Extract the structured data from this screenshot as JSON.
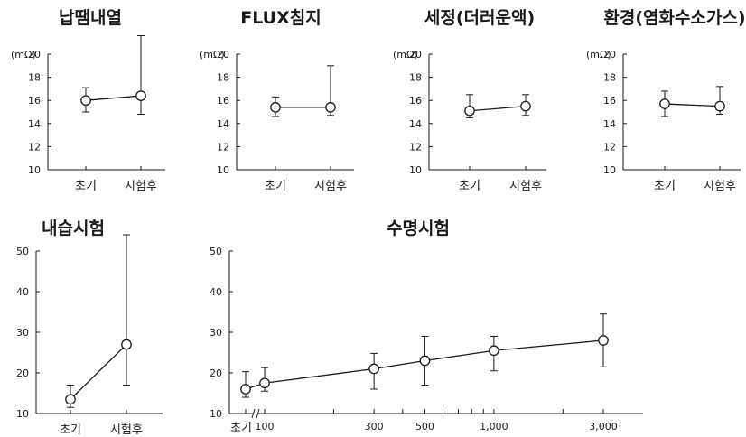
{
  "chart_data": [
    {
      "id": "c1",
      "type": "line",
      "title": "납땜내열",
      "ylabel": "(mΩ)",
      "ylim": [
        10,
        20
      ],
      "yticks": [
        10,
        12,
        14,
        16,
        18,
        20
      ],
      "categories": [
        "초기",
        "시험후"
      ],
      "points": [
        {
          "y": 16.0,
          "low": 15.0,
          "high": 17.1
        },
        {
          "y": 16.4,
          "low": 14.8,
          "high": 21.6
        }
      ],
      "grid": false
    },
    {
      "id": "c2",
      "type": "line",
      "title": "FLUX침지",
      "ylabel": "(mΩ)",
      "ylim": [
        10,
        20
      ],
      "yticks": [
        10,
        12,
        14,
        16,
        18,
        20
      ],
      "categories": [
        "초기",
        "시험후"
      ],
      "points": [
        {
          "y": 15.4,
          "low": 14.6,
          "high": 16.3
        },
        {
          "y": 15.4,
          "low": 14.7,
          "high": 19.0
        }
      ],
      "grid": false
    },
    {
      "id": "c3",
      "type": "line",
      "title": "세정(더러운액)",
      "ylabel": "(mΩ)",
      "ylim": [
        10,
        20
      ],
      "yticks": [
        10,
        12,
        14,
        16,
        18,
        20
      ],
      "categories": [
        "초기",
        "시험후"
      ],
      "points": [
        {
          "y": 15.1,
          "low": 14.5,
          "high": 16.5
        },
        {
          "y": 15.5,
          "low": 14.7,
          "high": 16.5
        }
      ],
      "grid": false
    },
    {
      "id": "c4",
      "type": "line",
      "title": "환경(염화수소가스)",
      "ylabel": "(mΩ)",
      "ylim": [
        10,
        20
      ],
      "yticks": [
        10,
        12,
        14,
        16,
        18,
        20
      ],
      "categories": [
        "초기",
        "시험후"
      ],
      "points": [
        {
          "y": 15.7,
          "low": 14.6,
          "high": 16.8
        },
        {
          "y": 15.5,
          "low": 14.8,
          "high": 17.2
        }
      ],
      "grid": false
    },
    {
      "id": "c5",
      "type": "line",
      "title": "내습시험",
      "ylabel": "",
      "ylim": [
        10,
        50
      ],
      "yticks": [
        10,
        20,
        30,
        40,
        50
      ],
      "categories": [
        "초기",
        "시험후"
      ],
      "points": [
        {
          "y": 13.5,
          "low": 11.5,
          "high": 17.0
        },
        {
          "y": 27.0,
          "low": 17.0,
          "high": 54.0
        }
      ],
      "grid": false
    },
    {
      "id": "c6",
      "type": "line",
      "title": "수명시험",
      "ylabel": "",
      "xscale": "log",
      "ylim": [
        10,
        50
      ],
      "yticks": [
        10,
        20,
        30,
        40,
        50
      ],
      "x_start_label": "초기",
      "xtick_labels": [
        {
          "x": 100,
          "label": "100"
        },
        {
          "x": 300,
          "label": "300"
        },
        {
          "x": 500,
          "label": "500"
        },
        {
          "x": 1000,
          "label": "1,000"
        },
        {
          "x": 3000,
          "label": "3,000"
        }
      ],
      "xticks_minor": [
        200,
        400,
        600,
        700,
        800,
        900,
        2000
      ],
      "x_break": true,
      "points": [
        {
          "x": "초기",
          "y": 16.0,
          "low": 14.0,
          "high": 20.3
        },
        {
          "x": 100,
          "y": 17.5,
          "low": 15.5,
          "high": 21.3
        },
        {
          "x": 300,
          "y": 21.0,
          "low": 16.0,
          "high": 24.8
        },
        {
          "x": 500,
          "y": 23.0,
          "low": 17.0,
          "high": 29.0
        },
        {
          "x": 1000,
          "y": 25.5,
          "low": 20.5,
          "high": 29.0
        },
        {
          "x": 3000,
          "y": 28.0,
          "low": 21.5,
          "high": 34.5
        }
      ],
      "grid": false
    }
  ]
}
